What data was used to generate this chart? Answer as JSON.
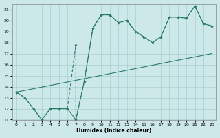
{
  "bg_color": "#cde8e8",
  "grid_color": "#a0c8c8",
  "line_color": "#2a7a6a",
  "xlabel": "Humidex (Indice chaleur)",
  "xlim": [
    -0.5,
    23.5
  ],
  "ylim": [
    11,
    21.5
  ],
  "yticks": [
    11,
    12,
    13,
    14,
    15,
    16,
    17,
    18,
    19,
    20,
    21
  ],
  "xticks": [
    0,
    1,
    2,
    3,
    4,
    5,
    6,
    7,
    8,
    9,
    10,
    11,
    12,
    13,
    14,
    15,
    16,
    17,
    18,
    19,
    20,
    21,
    22,
    23
  ],
  "line1_x": [
    0,
    1,
    2,
    3,
    4,
    5,
    6,
    7,
    8,
    9,
    10,
    11,
    12,
    13,
    14,
    15,
    16,
    17,
    18,
    19,
    20,
    21,
    22,
    23
  ],
  "line1_y": [
    13.5,
    13.0,
    12.0,
    11.0,
    12.0,
    12.0,
    12.0,
    11.0,
    14.5,
    19.3,
    20.5,
    20.5,
    19.8,
    20.0,
    19.0,
    18.5,
    18.0,
    18.5,
    20.3,
    20.3,
    20.2,
    21.3,
    19.7,
    19.5
  ],
  "line2_x": [
    0,
    1,
    2,
    3,
    4,
    5,
    6,
    7,
    7,
    8,
    9,
    10,
    11,
    12,
    13,
    14,
    15,
    16,
    17,
    18,
    19,
    20,
    21,
    22,
    23
  ],
  "line2_y": [
    13.5,
    13.0,
    12.0,
    11.0,
    12.0,
    12.0,
    12.0,
    17.8,
    11.0,
    14.5,
    19.3,
    20.5,
    20.5,
    19.8,
    20.0,
    19.0,
    18.5,
    18.0,
    18.5,
    20.3,
    20.3,
    20.2,
    21.3,
    19.7,
    19.5
  ],
  "line3_x": [
    0,
    23
  ],
  "line3_y": [
    13.5,
    17.0
  ],
  "figwidth": 3.2,
  "figheight": 2.0,
  "dpi": 100
}
